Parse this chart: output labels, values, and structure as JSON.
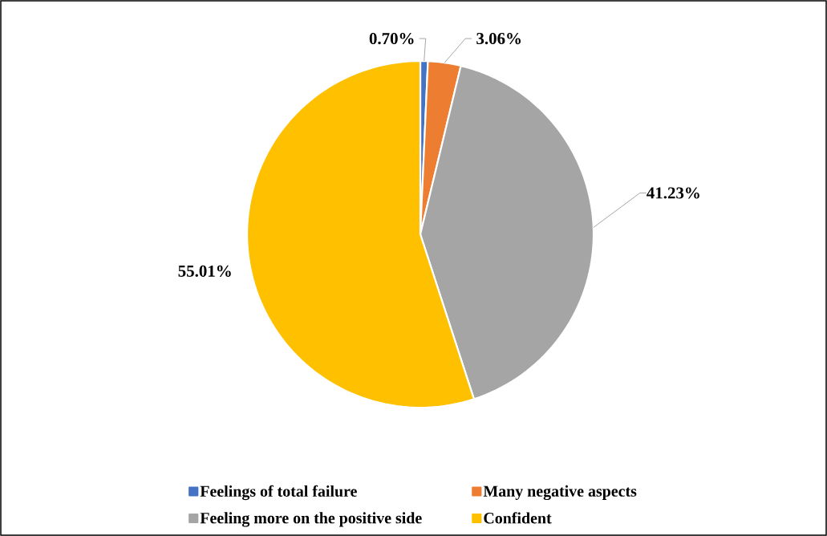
{
  "chart_data": {
    "type": "pie",
    "categories": [
      "Feelings of total failure",
      "Many negative aspects",
      "Feeling more on the positive side",
      "Confident"
    ],
    "values": [
      0.7,
      3.06,
      41.23,
      55.01
    ],
    "colors": [
      "#4472c4",
      "#ed7d31",
      "#a5a5a5",
      "#ffc000"
    ],
    "value_labels": [
      "0.70%",
      "3.06%",
      "41.23%",
      "55.01%"
    ],
    "legend": "bottom"
  }
}
